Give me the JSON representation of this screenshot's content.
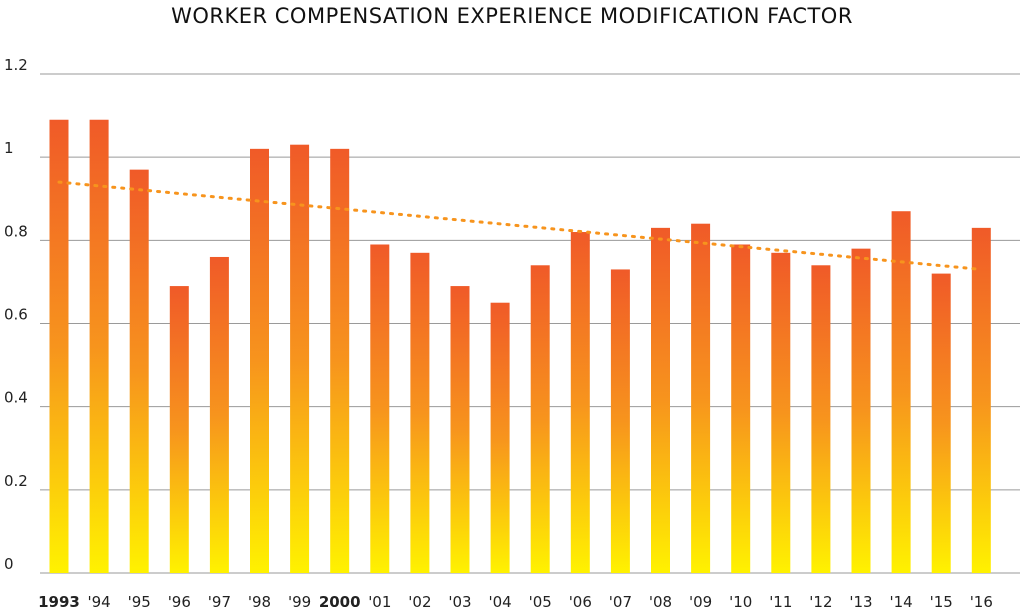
{
  "chart_data": {
    "type": "bar",
    "title": "WORKER COMPENSATION EXPERIENCE MODIFICATION FACTOR",
    "xlabel": "",
    "ylabel": "",
    "ylim": [
      0,
      1.2
    ],
    "yticks": [
      "0",
      "0.2",
      "0.4",
      "0.6",
      "0.8",
      "1",
      "1.2"
    ],
    "grid": true,
    "categories": [
      "1993",
      "'94",
      "'95",
      "'96",
      "'97",
      "'98",
      "'99",
      "2000",
      "'01",
      "'02",
      "'03",
      "'04",
      "'05",
      "'06",
      "'07",
      "'08",
      "'09",
      "'10",
      "'11",
      "'12",
      "'13",
      "'14",
      "'15",
      "'16"
    ],
    "bold_categories": [
      "1993",
      "2000"
    ],
    "values": [
      1.09,
      1.09,
      0.97,
      0.69,
      0.76,
      1.02,
      1.03,
      1.02,
      0.79,
      0.77,
      0.69,
      0.65,
      0.74,
      0.82,
      0.73,
      0.83,
      0.84,
      0.79,
      0.77,
      0.74,
      0.78,
      0.87,
      0.72,
      0.83
    ],
    "trendline": {
      "style": "dotted",
      "start": 0.94,
      "end": 0.73
    },
    "colors": {
      "bar_top": "#f05a28",
      "bar_mid": "#f7941d",
      "bar_bottom": "#fff200",
      "trendline": "#f7941d",
      "grid": "#9a9a9a"
    }
  }
}
